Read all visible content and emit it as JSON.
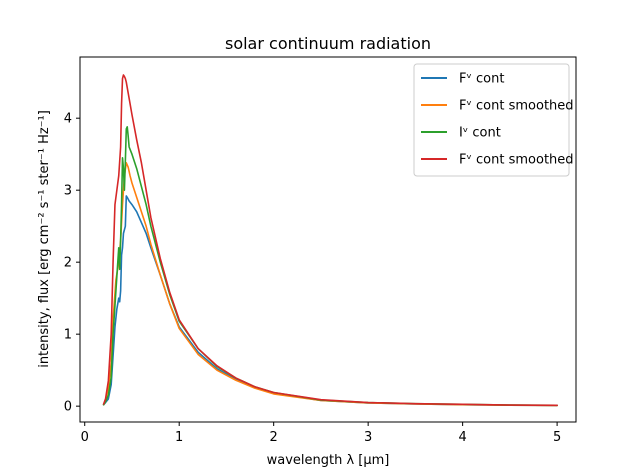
{
  "chart_data": {
    "type": "line",
    "title": "solar continuum radiation",
    "xlabel": "wavelength λ [μm]",
    "ylabel": "intensity, flux [erg cm⁻² s⁻¹ ster⁻¹ Hz⁻¹]",
    "xlim": [
      -0.05,
      5.2
    ],
    "ylim": [
      -0.22,
      4.85
    ],
    "xticks": [
      "0",
      "1",
      "2",
      "3",
      "4",
      "5"
    ],
    "yticks": [
      "0",
      "1",
      "2",
      "3",
      "4"
    ],
    "grid": false,
    "legend_position": "top-right",
    "series": [
      {
        "name": "Fᵛ cont",
        "color": "#1f77b4",
        "x": [
          0.2,
          0.22,
          0.25,
          0.28,
          0.3,
          0.32,
          0.34,
          0.36,
          0.37,
          0.38,
          0.39,
          0.4,
          0.41,
          0.42,
          0.43,
          0.44,
          0.45,
          0.47,
          0.5,
          0.55,
          0.6,
          0.65,
          0.7,
          0.8,
          0.9,
          1.0,
          1.2,
          1.4,
          1.6,
          1.8,
          2.0,
          2.5,
          3.0,
          3.5,
          4.0,
          4.5,
          5.0
        ],
        "y": [
          0.02,
          0.05,
          0.1,
          0.3,
          0.7,
          1.1,
          1.35,
          1.5,
          1.45,
          1.6,
          2.1,
          2.2,
          2.4,
          2.45,
          2.5,
          2.92,
          2.9,
          2.85,
          2.8,
          2.7,
          2.55,
          2.4,
          2.2,
          1.82,
          1.42,
          1.1,
          0.75,
          0.52,
          0.37,
          0.26,
          0.18,
          0.08,
          0.045,
          0.03,
          0.02,
          0.013,
          0.01
        ]
      },
      {
        "name": "Fᵛ cont smoothed",
        "color": "#ff7f0e",
        "x": [
          0.2,
          0.22,
          0.25,
          0.28,
          0.3,
          0.33,
          0.36,
          0.38,
          0.4,
          0.42,
          0.44,
          0.46,
          0.48,
          0.5,
          0.55,
          0.6,
          0.65,
          0.7,
          0.8,
          0.9,
          1.0,
          1.2,
          1.4,
          1.6,
          1.8,
          2.0,
          2.5,
          3.0,
          3.5,
          4.0,
          4.5,
          5.0
        ],
        "y": [
          0.02,
          0.08,
          0.25,
          0.6,
          1.2,
          1.75,
          2.0,
          2.3,
          2.8,
          3.2,
          3.38,
          3.32,
          3.2,
          3.1,
          2.9,
          2.7,
          2.5,
          2.25,
          1.82,
          1.42,
          1.08,
          0.72,
          0.5,
          0.36,
          0.25,
          0.17,
          0.08,
          0.045,
          0.03,
          0.02,
          0.013,
          0.01
        ]
      },
      {
        "name": "Iᵛ cont",
        "color": "#2ca02c",
        "x": [
          0.2,
          0.22,
          0.25,
          0.28,
          0.3,
          0.33,
          0.35,
          0.36,
          0.37,
          0.38,
          0.39,
          0.4,
          0.41,
          0.42,
          0.43,
          0.44,
          0.45,
          0.46,
          0.47,
          0.5,
          0.55,
          0.6,
          0.65,
          0.7,
          0.8,
          0.9,
          1.0,
          1.2,
          1.4,
          1.6,
          1.8,
          2.0,
          2.5,
          3.0,
          3.5,
          4.0,
          4.5,
          5.0
        ],
        "y": [
          0.02,
          0.06,
          0.15,
          0.4,
          1.0,
          1.6,
          2.0,
          2.2,
          1.9,
          2.3,
          2.8,
          3.45,
          3.3,
          3.0,
          3.4,
          3.85,
          3.88,
          3.75,
          3.6,
          3.5,
          3.3,
          3.05,
          2.8,
          2.5,
          2.0,
          1.55,
          1.18,
          0.8,
          0.55,
          0.39,
          0.27,
          0.19,
          0.085,
          0.05,
          0.035,
          0.025,
          0.015,
          0.012
        ]
      },
      {
        "name": "Fᵛ cont smoothed",
        "color": "#d62728",
        "x": [
          0.2,
          0.22,
          0.25,
          0.28,
          0.3,
          0.32,
          0.34,
          0.36,
          0.38,
          0.39,
          0.4,
          0.41,
          0.42,
          0.43,
          0.44,
          0.46,
          0.48,
          0.5,
          0.55,
          0.6,
          0.65,
          0.7,
          0.8,
          0.9,
          1.0,
          1.2,
          1.4,
          1.6,
          1.8,
          2.0,
          2.5,
          3.0,
          3.5,
          4.0,
          4.5,
          5.0
        ],
        "y": [
          0.03,
          0.1,
          0.35,
          1.0,
          2.0,
          2.8,
          3.0,
          3.2,
          3.6,
          4.2,
          4.55,
          4.6,
          4.58,
          4.55,
          4.5,
          4.35,
          4.2,
          4.05,
          3.7,
          3.38,
          3.0,
          2.62,
          2.05,
          1.58,
          1.2,
          0.8,
          0.56,
          0.39,
          0.27,
          0.19,
          0.09,
          0.05,
          0.035,
          0.025,
          0.015,
          0.012
        ]
      }
    ]
  }
}
